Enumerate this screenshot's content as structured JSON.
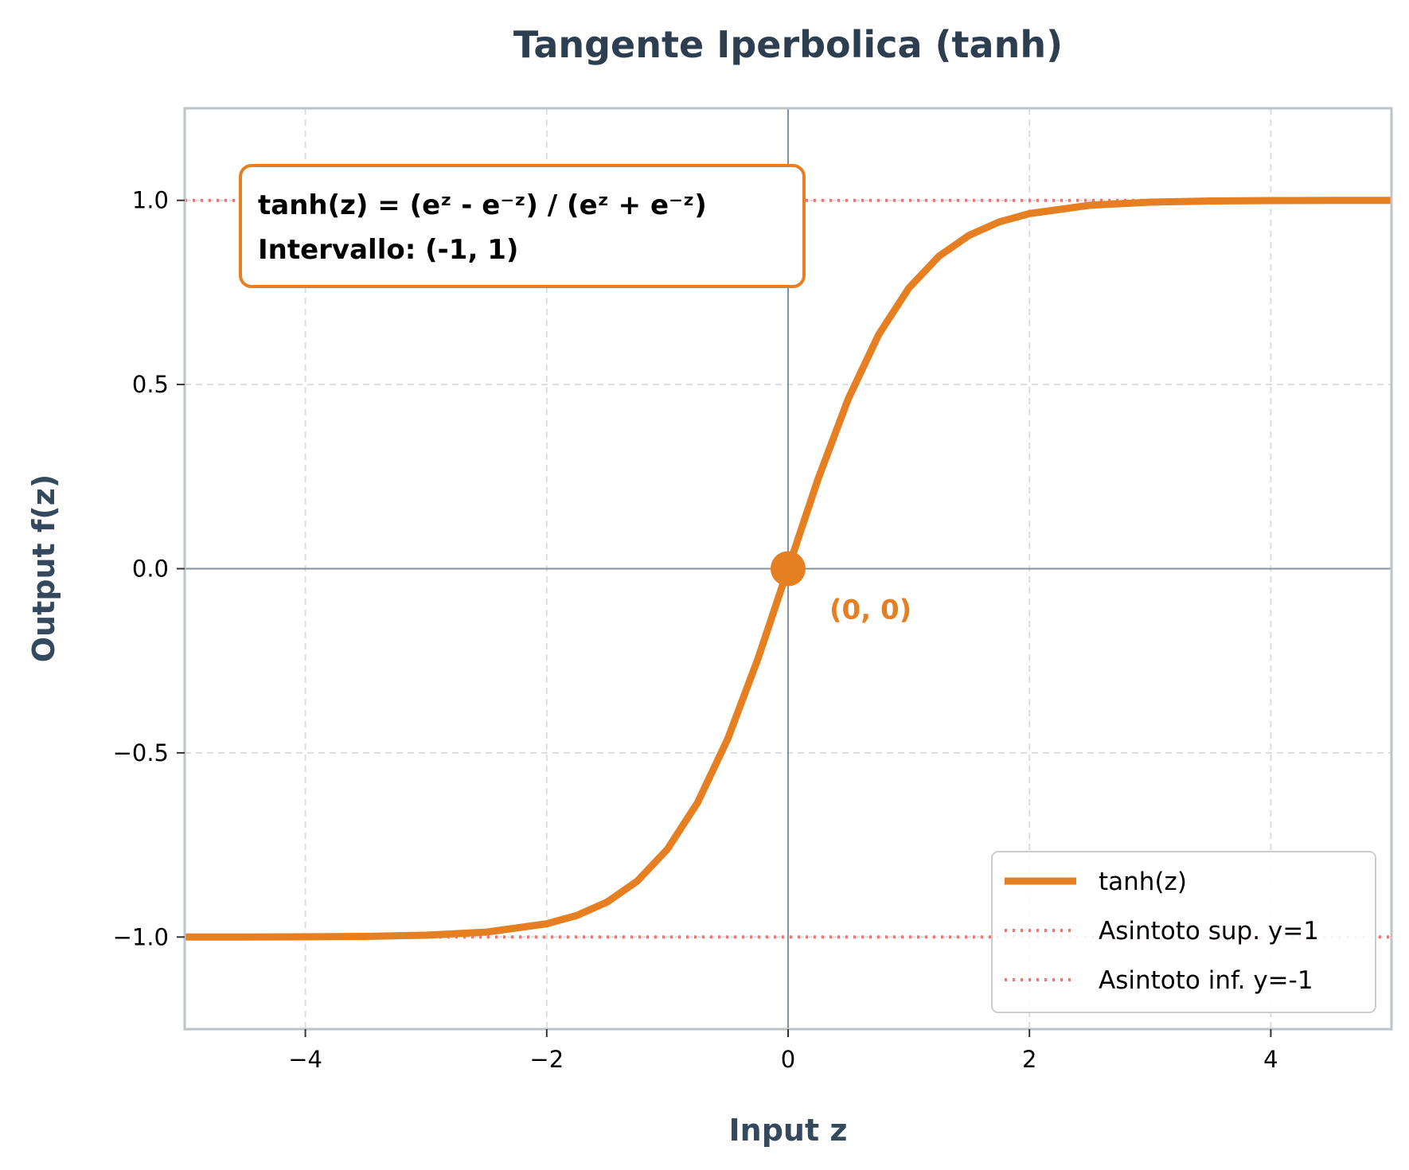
{
  "chart_data": {
    "type": "line",
    "title": "Tangente Iperbolica (tanh)",
    "xlabel": "Input z",
    "ylabel": "Output f(z)",
    "xlim": [
      -5,
      5
    ],
    "ylim": [
      -1.25,
      1.25
    ],
    "x_ticks": [
      -4,
      -2,
      0,
      2,
      4
    ],
    "x_tick_labels": [
      "−4",
      "−2",
      "0",
      "2",
      "4"
    ],
    "y_ticks": [
      -1.0,
      -0.5,
      0.0,
      0.5,
      1.0
    ],
    "y_tick_labels": [
      "−1.0",
      "−0.5",
      "0.0",
      "0.5",
      "1.0"
    ],
    "grid": true,
    "series": [
      {
        "name": "tanh(z)",
        "color": "#e67e22",
        "style": "solid",
        "x": [
          -5,
          -4.5,
          -4,
          -3.5,
          -3,
          -2.5,
          -2,
          -1.75,
          -1.5,
          -1.25,
          -1,
          -0.75,
          -0.5,
          -0.25,
          0,
          0.25,
          0.5,
          0.75,
          1,
          1.25,
          1.5,
          1.75,
          2,
          2.5,
          3,
          3.5,
          4,
          4.5,
          5
        ],
        "y": [
          -0.9999,
          -0.9998,
          -0.9993,
          -0.9982,
          -0.9951,
          -0.9866,
          -0.964,
          -0.9414,
          -0.9051,
          -0.8483,
          -0.7616,
          -0.6351,
          -0.4621,
          -0.2449,
          0,
          0.2449,
          0.4621,
          0.6351,
          0.7616,
          0.8483,
          0.9051,
          0.9414,
          0.964,
          0.9866,
          0.9951,
          0.9982,
          0.9993,
          0.9998,
          0.9999
        ]
      },
      {
        "name": "Asintoto sup. y=1",
        "color": "#e07b7b",
        "style": "dotted",
        "x": [
          -5,
          5
        ],
        "y": [
          1,
          1
        ]
      },
      {
        "name": "Asintoto inf. y=-1",
        "color": "#e07b7b",
        "style": "dotted",
        "x": [
          -5,
          5
        ],
        "y": [
          -1,
          -1
        ]
      }
    ],
    "highlight_point": {
      "x": 0,
      "y": 0,
      "label": "(0, 0)",
      "color": "#e67e22"
    },
    "info_box": {
      "lines": [
        "tanh(z) = (eᶻ - e⁻ᶻ) / (eᶻ + e⁻ᶻ)",
        "Intervallo: (-1, 1)"
      ],
      "border_color": "#e67e22"
    },
    "legend": {
      "placement": "lower-right",
      "entries": [
        "tanh(z)",
        "Asintoto sup. y=1",
        "Asintoto inf. y=-1"
      ]
    }
  }
}
